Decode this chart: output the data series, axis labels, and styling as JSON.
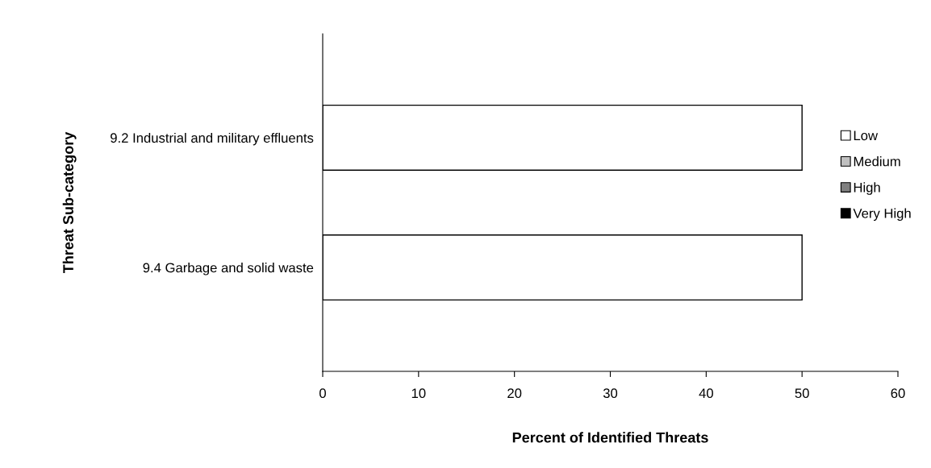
{
  "chart_data": {
    "type": "bar",
    "orientation": "horizontal",
    "stacked": true,
    "xlabel": "Percent of Identified Threats",
    "ylabel": "Threat Sub-category",
    "categories": [
      "9.2 Industrial and military effluents",
      "9.4 Garbage and solid waste"
    ],
    "series": [
      {
        "name": "Low",
        "color": "#ffffff",
        "values": [
          50,
          50
        ]
      },
      {
        "name": "Medium",
        "color": "#c0c0c0",
        "values": [
          0,
          0
        ]
      },
      {
        "name": "High",
        "color": "#808080",
        "values": [
          0,
          0
        ]
      },
      {
        "name": "Very High",
        "color": "#000000",
        "values": [
          0,
          0
        ]
      }
    ],
    "xlim": [
      0,
      60
    ],
    "xticks": [
      0,
      10,
      20,
      30,
      40,
      50,
      60
    ],
    "grid": false,
    "legend": "right"
  }
}
